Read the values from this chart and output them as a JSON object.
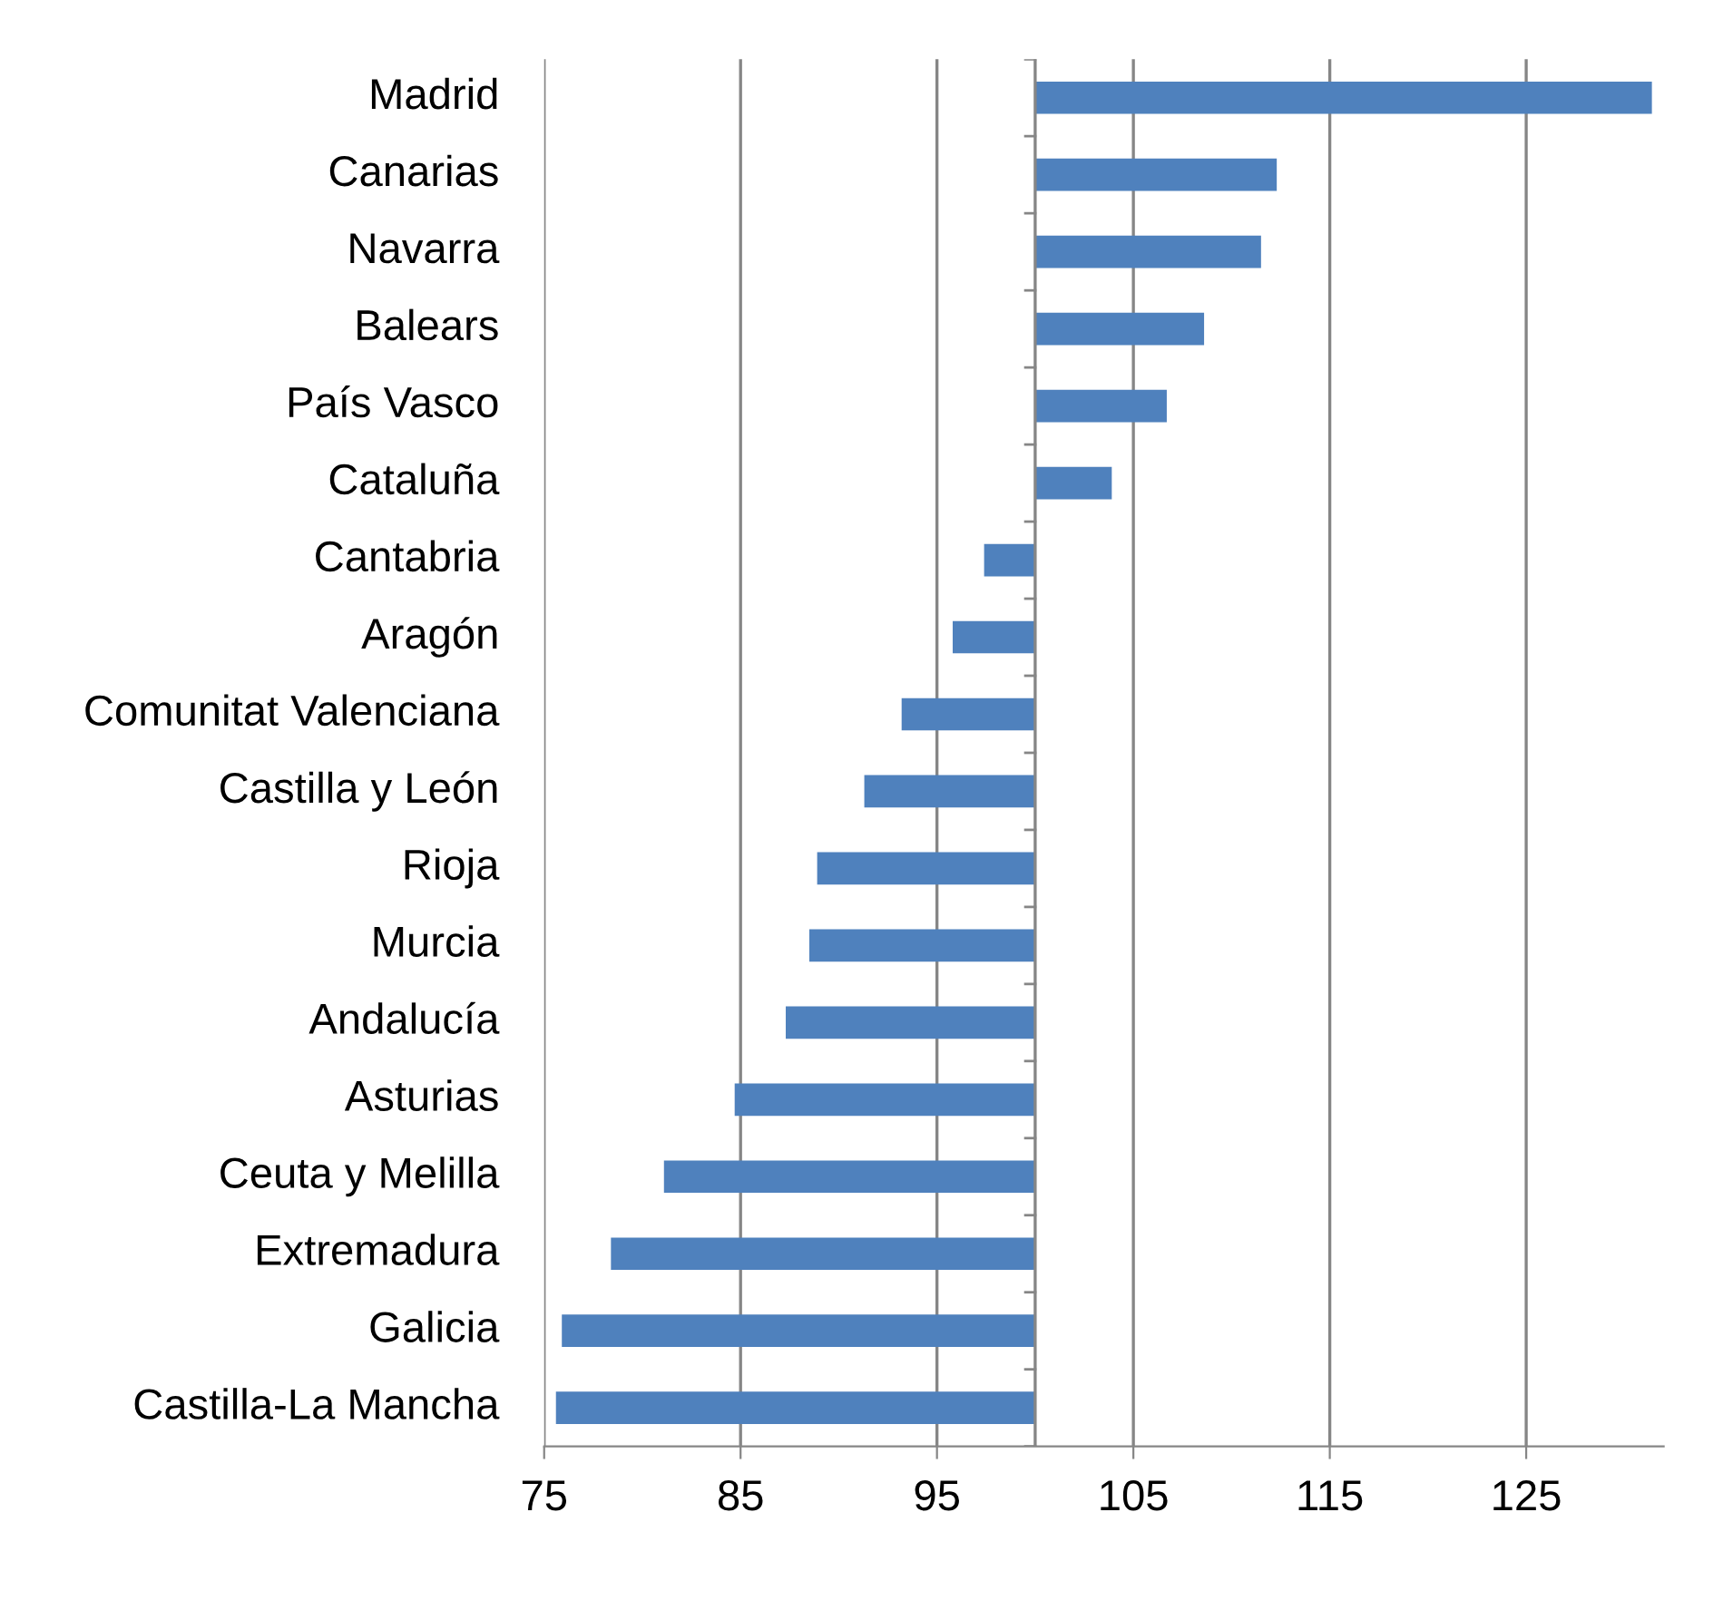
{
  "chart_data": {
    "type": "bar",
    "orientation": "horizontal",
    "categories": [
      "Madrid",
      "Canarias",
      "Navarra",
      "Balears",
      "País Vasco",
      "Cataluña",
      "Cantabria",
      "Aragón",
      "Comunitat Valenciana",
      "Castilla y León",
      "Rioja",
      "Murcia",
      "Andalucía",
      "Asturias",
      "Ceuta y Melilla",
      "Extremadura",
      "Galicia",
      "Castilla-La Mancha"
    ],
    "base": [
      100,
      100,
      100,
      100,
      100,
      100,
      100,
      100,
      100,
      100,
      100,
      100,
      100,
      100,
      100,
      100,
      100,
      100
    ],
    "values": [
      31.4,
      12.3,
      11.5,
      8.6,
      6.7,
      3.9,
      -2.6,
      -4.2,
      -6.8,
      -8.7,
      -11.1,
      -11.5,
      -12.7,
      -15.3,
      -18.9,
      -21.6,
      -24.1,
      -24.4
    ],
    "color": "#4f81bd",
    "xlim": [
      75,
      132
    ],
    "xticks": [
      75,
      85,
      95,
      105,
      115,
      125
    ],
    "ref_lines": [
      {
        "axis": "x",
        "value": 100,
        "color": "#868686"
      }
    ],
    "grid": "x",
    "legend": false
  }
}
